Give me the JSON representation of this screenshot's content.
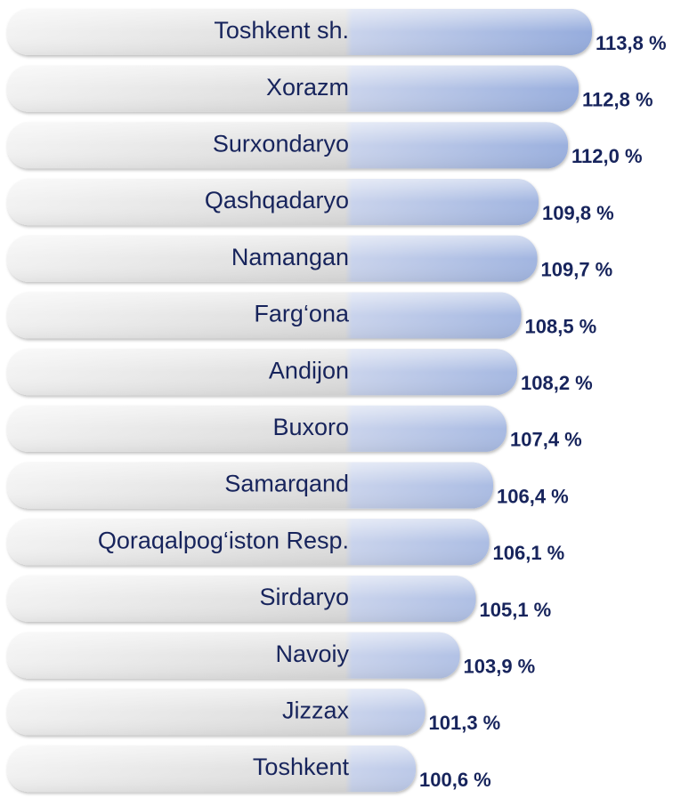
{
  "chart_data": {
    "type": "bar",
    "categories": [
      "Toshkent sh.",
      "Xorazm",
      "Surxondaryo",
      "Qashqadaryo",
      "Namangan",
      "Farg‘ona",
      "Andijon",
      "Buxoro",
      "Samarqand",
      "Qoraqalpog‘iston Resp.",
      "Sirdaryo",
      "Navoiy",
      "Jizzax",
      "Toshkent"
    ],
    "values": [
      113.8,
      112.8,
      112.0,
      109.8,
      109.7,
      108.5,
      108.2,
      107.4,
      106.4,
      106.1,
      105.1,
      103.9,
      101.3,
      100.6
    ],
    "value_labels": [
      "113,8 %",
      "112,8 %",
      "112,0 %",
      "109,8 %",
      "109,7 %",
      "108,5 %",
      "108,2 %",
      "107,4 %",
      "106,4 %",
      "106,1 %",
      "105,1 %",
      "103,9 %",
      "101,3 %",
      "100,6 %"
    ],
    "color": "#8ea7dc",
    "xlim": [
      70,
      121.6
    ]
  }
}
